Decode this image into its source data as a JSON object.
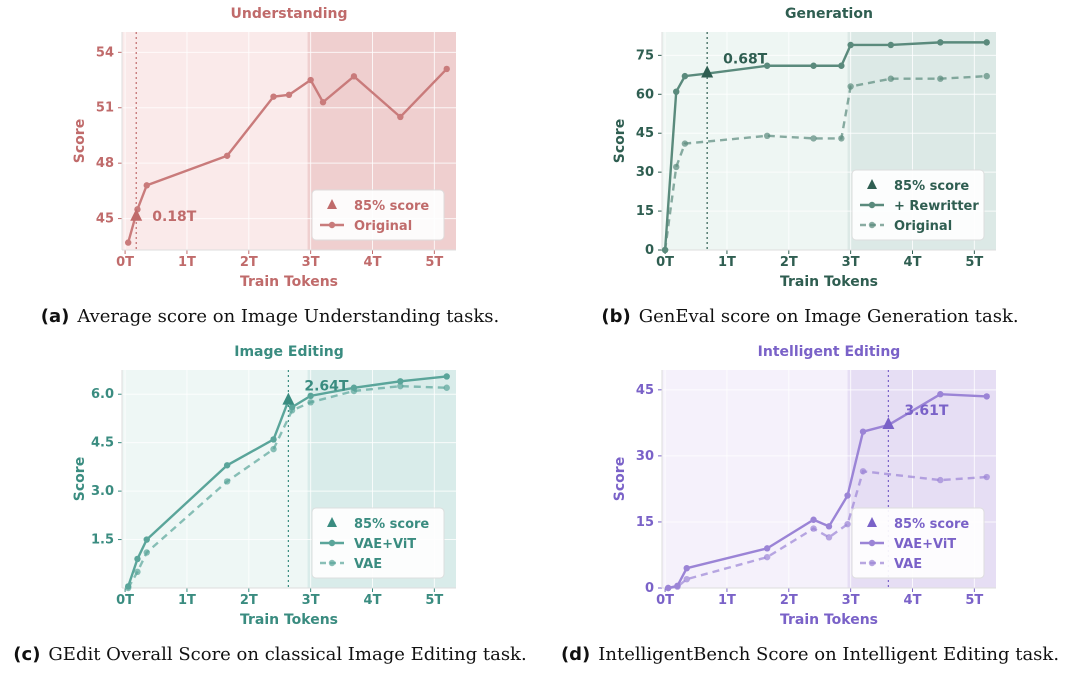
{
  "chart_data": [
    {
      "type": "line",
      "title": "Understanding",
      "xlabel": "Train Tokens",
      "ylabel": "Score",
      "xlim": [
        -0.05,
        5.35
      ],
      "ylim": [
        43.3,
        55.1
      ],
      "xticks": [
        0,
        1,
        2,
        3,
        4,
        5
      ],
      "xtick_labels": [
        "0T",
        "1T",
        "2T",
        "3T",
        "4T",
        "5T"
      ],
      "yticks": [
        45,
        48,
        51,
        54
      ],
      "ytick_labels": [
        "45",
        "48",
        "51",
        "54"
      ],
      "grid": true,
      "shade_start": 2.95,
      "marker": {
        "x": 0.18,
        "y": 45.1,
        "label": "0.18T"
      },
      "legend": {
        "position": "bottom-right",
        "entries": [
          {
            "name": "85% score",
            "kind": "triangle"
          },
          {
            "name": "Original",
            "kind": "solid"
          }
        ]
      },
      "series": [
        {
          "name": "Original",
          "style": "solid",
          "x": [
            0.05,
            0.2,
            0.35,
            1.65,
            2.4,
            2.65,
            3.0,
            3.2,
            3.7,
            4.45,
            5.2
          ],
          "y": [
            43.7,
            45.5,
            46.8,
            48.4,
            51.6,
            51.7,
            52.5,
            51.3,
            52.7,
            50.5,
            53.1
          ]
        }
      ],
      "colors": {
        "main": "#c97b7b",
        "label": "#c06b6b",
        "bg_light": "#faeaea",
        "bg_dark": "#efcfcf",
        "legend_text": "#c06b6b"
      }
    },
    {
      "type": "line",
      "title": "Generation",
      "xlabel": "Train Tokens",
      "ylabel": "Score",
      "xlim": [
        -0.05,
        5.35
      ],
      "ylim": [
        0,
        84
      ],
      "xticks": [
        0,
        1,
        2,
        3,
        4,
        5
      ],
      "xtick_labels": [
        "0T",
        "1T",
        "2T",
        "3T",
        "4T",
        "5T"
      ],
      "yticks": [
        0,
        15,
        30,
        45,
        60,
        75
      ],
      "ytick_labels": [
        "0",
        "15",
        "30",
        "45",
        "60",
        "75"
      ],
      "grid": true,
      "shade_start": 2.95,
      "marker": {
        "x": 0.68,
        "y": 68,
        "label": "0.68T"
      },
      "legend": {
        "position": "bottom-right",
        "entries": [
          {
            "name": "85% score",
            "kind": "triangle"
          },
          {
            "name": "+ Rewritter",
            "kind": "solid"
          },
          {
            "name": "Original",
            "kind": "dashed"
          }
        ]
      },
      "series": [
        {
          "name": "+ Rewritter",
          "style": "solid",
          "x": [
            0.0,
            0.18,
            0.32,
            0.68,
            1.65,
            2.4,
            2.85,
            3.0,
            3.65,
            4.45,
            5.2
          ],
          "y": [
            0,
            61,
            67,
            68,
            71,
            71,
            71,
            79,
            79,
            80,
            80
          ]
        },
        {
          "name": "Original",
          "style": "dashed",
          "x": [
            0.0,
            0.18,
            0.32,
            1.65,
            2.4,
            2.85,
            3.0,
            3.65,
            4.45,
            5.2
          ],
          "y": [
            0,
            32,
            41,
            44,
            43,
            43,
            63,
            66,
            66,
            67
          ]
        }
      ],
      "colors": {
        "main": "#5a8a7c",
        "label": "#2f5e51",
        "bg_light": "#eef6f3",
        "bg_dark": "#dce9e6",
        "legend_text": "#2f5e51"
      }
    },
    {
      "type": "line",
      "title": "Image Editing",
      "xlabel": "Train Tokens",
      "ylabel": "Score",
      "xlim": [
        -0.05,
        5.35
      ],
      "ylim": [
        0,
        6.75
      ],
      "xticks": [
        0,
        1,
        2,
        3,
        4,
        5
      ],
      "xtick_labels": [
        "0T",
        "1T",
        "2T",
        "3T",
        "4T",
        "5T"
      ],
      "yticks": [
        1.5,
        3.0,
        4.5,
        6.0
      ],
      "ytick_labels": [
        "1.5",
        "3.0",
        "4.5",
        "6.0"
      ],
      "grid": true,
      "shade_start": 2.95,
      "marker": {
        "x": 2.64,
        "y": 5.8,
        "label": "2.64T"
      },
      "legend": {
        "position": "bottom-right",
        "entries": [
          {
            "name": "85% score",
            "kind": "triangle"
          },
          {
            "name": "VAE+ViT",
            "kind": "solid"
          },
          {
            "name": "VAE",
            "kind": "dashed"
          }
        ]
      },
      "series": [
        {
          "name": "VAE+ViT",
          "style": "solid",
          "x": [
            0.05,
            0.2,
            0.35,
            1.65,
            2.4,
            2.64,
            2.7,
            3.0,
            3.7,
            4.45,
            5.2
          ],
          "y": [
            0.05,
            0.9,
            1.5,
            3.8,
            4.6,
            5.8,
            5.6,
            5.95,
            6.2,
            6.4,
            6.55
          ]
        },
        {
          "name": "VAE",
          "style": "dashed",
          "x": [
            0.05,
            0.2,
            0.35,
            1.65,
            2.4,
            2.7,
            3.0,
            3.7,
            4.45,
            5.2
          ],
          "y": [
            0.0,
            0.5,
            1.1,
            3.3,
            4.3,
            5.5,
            5.75,
            6.1,
            6.25,
            6.2
          ]
        }
      ],
      "colors": {
        "main": "#5aa59a",
        "label": "#3a8c80",
        "bg_light": "#eef7f5",
        "bg_dark": "#d9ecea",
        "legend_text": "#3a8c80"
      }
    },
    {
      "type": "line",
      "title": "Intelligent Editing",
      "xlabel": "Train Tokens",
      "ylabel": "Score",
      "xlim": [
        -0.05,
        5.35
      ],
      "ylim": [
        0,
        49.5
      ],
      "xticks": [
        0,
        1,
        2,
        3,
        4,
        5
      ],
      "xtick_labels": [
        "0T",
        "1T",
        "2T",
        "3T",
        "4T",
        "5T"
      ],
      "yticks": [
        0,
        15,
        30,
        45
      ],
      "ytick_labels": [
        "0",
        "15",
        "30",
        "45"
      ],
      "grid": true,
      "shade_start": 2.95,
      "marker": {
        "x": 3.61,
        "y": 37,
        "label": "3.61T"
      },
      "legend": {
        "position": "bottom-right",
        "entries": [
          {
            "name": "85% score",
            "kind": "triangle"
          },
          {
            "name": "VAE+ViT",
            "kind": "solid"
          },
          {
            "name": "VAE",
            "kind": "dashed"
          }
        ]
      },
      "series": [
        {
          "name": "VAE+ViT",
          "style": "solid",
          "x": [
            0.05,
            0.2,
            0.35,
            1.65,
            2.4,
            2.65,
            2.95,
            3.2,
            3.61,
            4.45,
            5.2
          ],
          "y": [
            0,
            0.5,
            4.5,
            9,
            15.5,
            14,
            21,
            35.5,
            37,
            44,
            43.5
          ]
        },
        {
          "name": "VAE",
          "style": "dashed",
          "x": [
            0.05,
            0.2,
            0.35,
            1.65,
            2.4,
            2.65,
            2.95,
            3.2,
            4.45,
            5.2
          ],
          "y": [
            0,
            0.3,
            2,
            7,
            13.5,
            11.5,
            14.5,
            26.5,
            24.5,
            25.2
          ]
        }
      ],
      "colors": {
        "main": "#9b84d6",
        "label": "#7a62c8",
        "bg_light": "#f5f1fb",
        "bg_dark": "#e6def4",
        "legend_text": "#7a62c8"
      }
    }
  ],
  "captions": [
    {
      "tag": "(a)",
      "text": "Average score on Image Understanding tasks."
    },
    {
      "tag": "(b)",
      "text": "GenEval score on Image Generation task."
    },
    {
      "tag": "(c)",
      "text": "GEdit Overall Score on classical Image Editing task."
    },
    {
      "tag": "(d)",
      "text": "IntelligentBench Score on Intelligent Editing task."
    }
  ]
}
